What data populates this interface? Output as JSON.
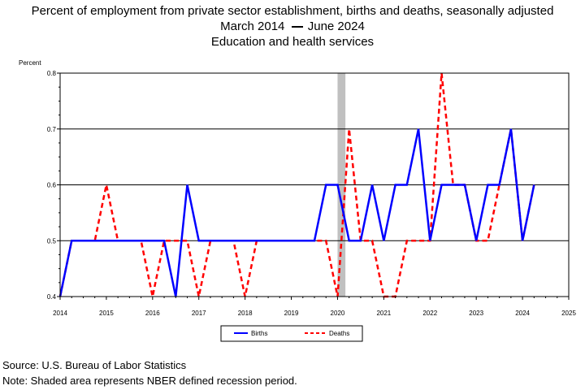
{
  "titles": {
    "line1": "Percent of employment from private sector establishment, births and deaths, seasonally adjusted",
    "line2_start": "March 2014",
    "line2_end": "June 2024",
    "line3": "Education and health services"
  },
  "footer": {
    "source": "Source: U.S. Bureau of Labor Statistics",
    "note": "Note: Shaded area represents NBER defined recession period."
  },
  "chart_data": {
    "type": "line",
    "ylabel": "Percent",
    "xlim": [
      2014,
      2025
    ],
    "ylim": [
      0.4,
      0.8
    ],
    "x_ticks": [
      "2014",
      "2015",
      "2016",
      "2017",
      "2018",
      "2019",
      "2020",
      "2021",
      "2022",
      "2023",
      "2024",
      "2025"
    ],
    "y_ticks": [
      "0.4",
      "0.5",
      "0.6",
      "0.7",
      "0.8"
    ],
    "grid": true,
    "legend_position": "bottom-center",
    "recession_band": [
      2020.0,
      2020.17
    ],
    "colors": {
      "births": "#0000ff",
      "deaths": "#ff0000",
      "recession": "#c0c0c0"
    },
    "x": [
      2014.0,
      2014.25,
      2014.5,
      2014.75,
      2015.0,
      2015.25,
      2015.5,
      2015.75,
      2016.0,
      2016.25,
      2016.5,
      2016.75,
      2017.0,
      2017.25,
      2017.5,
      2017.75,
      2018.0,
      2018.25,
      2018.5,
      2018.75,
      2019.0,
      2019.25,
      2019.5,
      2019.75,
      2020.0,
      2020.25,
      2020.5,
      2020.75,
      2021.0,
      2021.25,
      2021.5,
      2021.75,
      2022.0,
      2022.25,
      2022.5,
      2022.75,
      2023.0,
      2023.25,
      2023.5,
      2023.75,
      2024.0,
      2024.25
    ],
    "series": [
      {
        "name": "Births",
        "style": "solid",
        "values": [
          0.4,
          0.5,
          0.5,
          0.5,
          0.5,
          0.5,
          0.5,
          0.5,
          0.5,
          0.5,
          0.4,
          0.6,
          0.5,
          0.5,
          0.5,
          0.5,
          0.5,
          0.5,
          0.5,
          0.5,
          0.5,
          0.5,
          0.5,
          0.6,
          0.6,
          0.5,
          0.5,
          0.6,
          0.5,
          0.6,
          0.6,
          0.7,
          0.5,
          0.6,
          0.6,
          0.6,
          0.5,
          0.6,
          0.6,
          0.7,
          0.5,
          0.6
        ]
      },
      {
        "name": "Deaths",
        "style": "dashed",
        "values": [
          0.4,
          0.5,
          0.5,
          0.5,
          0.6,
          0.5,
          0.5,
          0.5,
          0.4,
          0.5,
          0.5,
          0.5,
          0.4,
          0.5,
          0.5,
          0.5,
          0.4,
          0.5,
          0.5,
          0.5,
          0.5,
          0.5,
          0.5,
          0.5,
          0.4,
          0.7,
          0.5,
          0.5,
          0.4,
          0.4,
          0.5,
          0.5,
          0.5,
          0.8,
          0.6,
          0.6,
          0.5,
          0.5,
          0.6,
          0.7,
          0.5,
          0.6
        ]
      }
    ]
  }
}
